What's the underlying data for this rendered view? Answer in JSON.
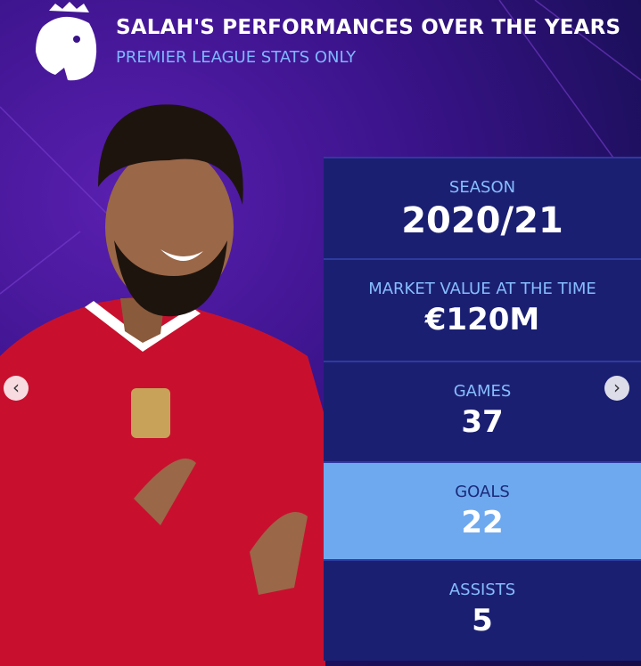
{
  "header": {
    "title": "SALAH'S PERFORMANCES OVER THE YEARS",
    "subtitle": "PREMIER LEAGUE STATS ONLY"
  },
  "stats": [
    {
      "label": "SEASON",
      "value": "2020/21"
    },
    {
      "label": "MARKET VALUE AT THE TIME",
      "value": "€120M"
    },
    {
      "label": "GAMES",
      "value": 37
    },
    {
      "label": "GOALS",
      "value": 22
    },
    {
      "label": "ASSISTS",
      "value": 5
    }
  ]
}
